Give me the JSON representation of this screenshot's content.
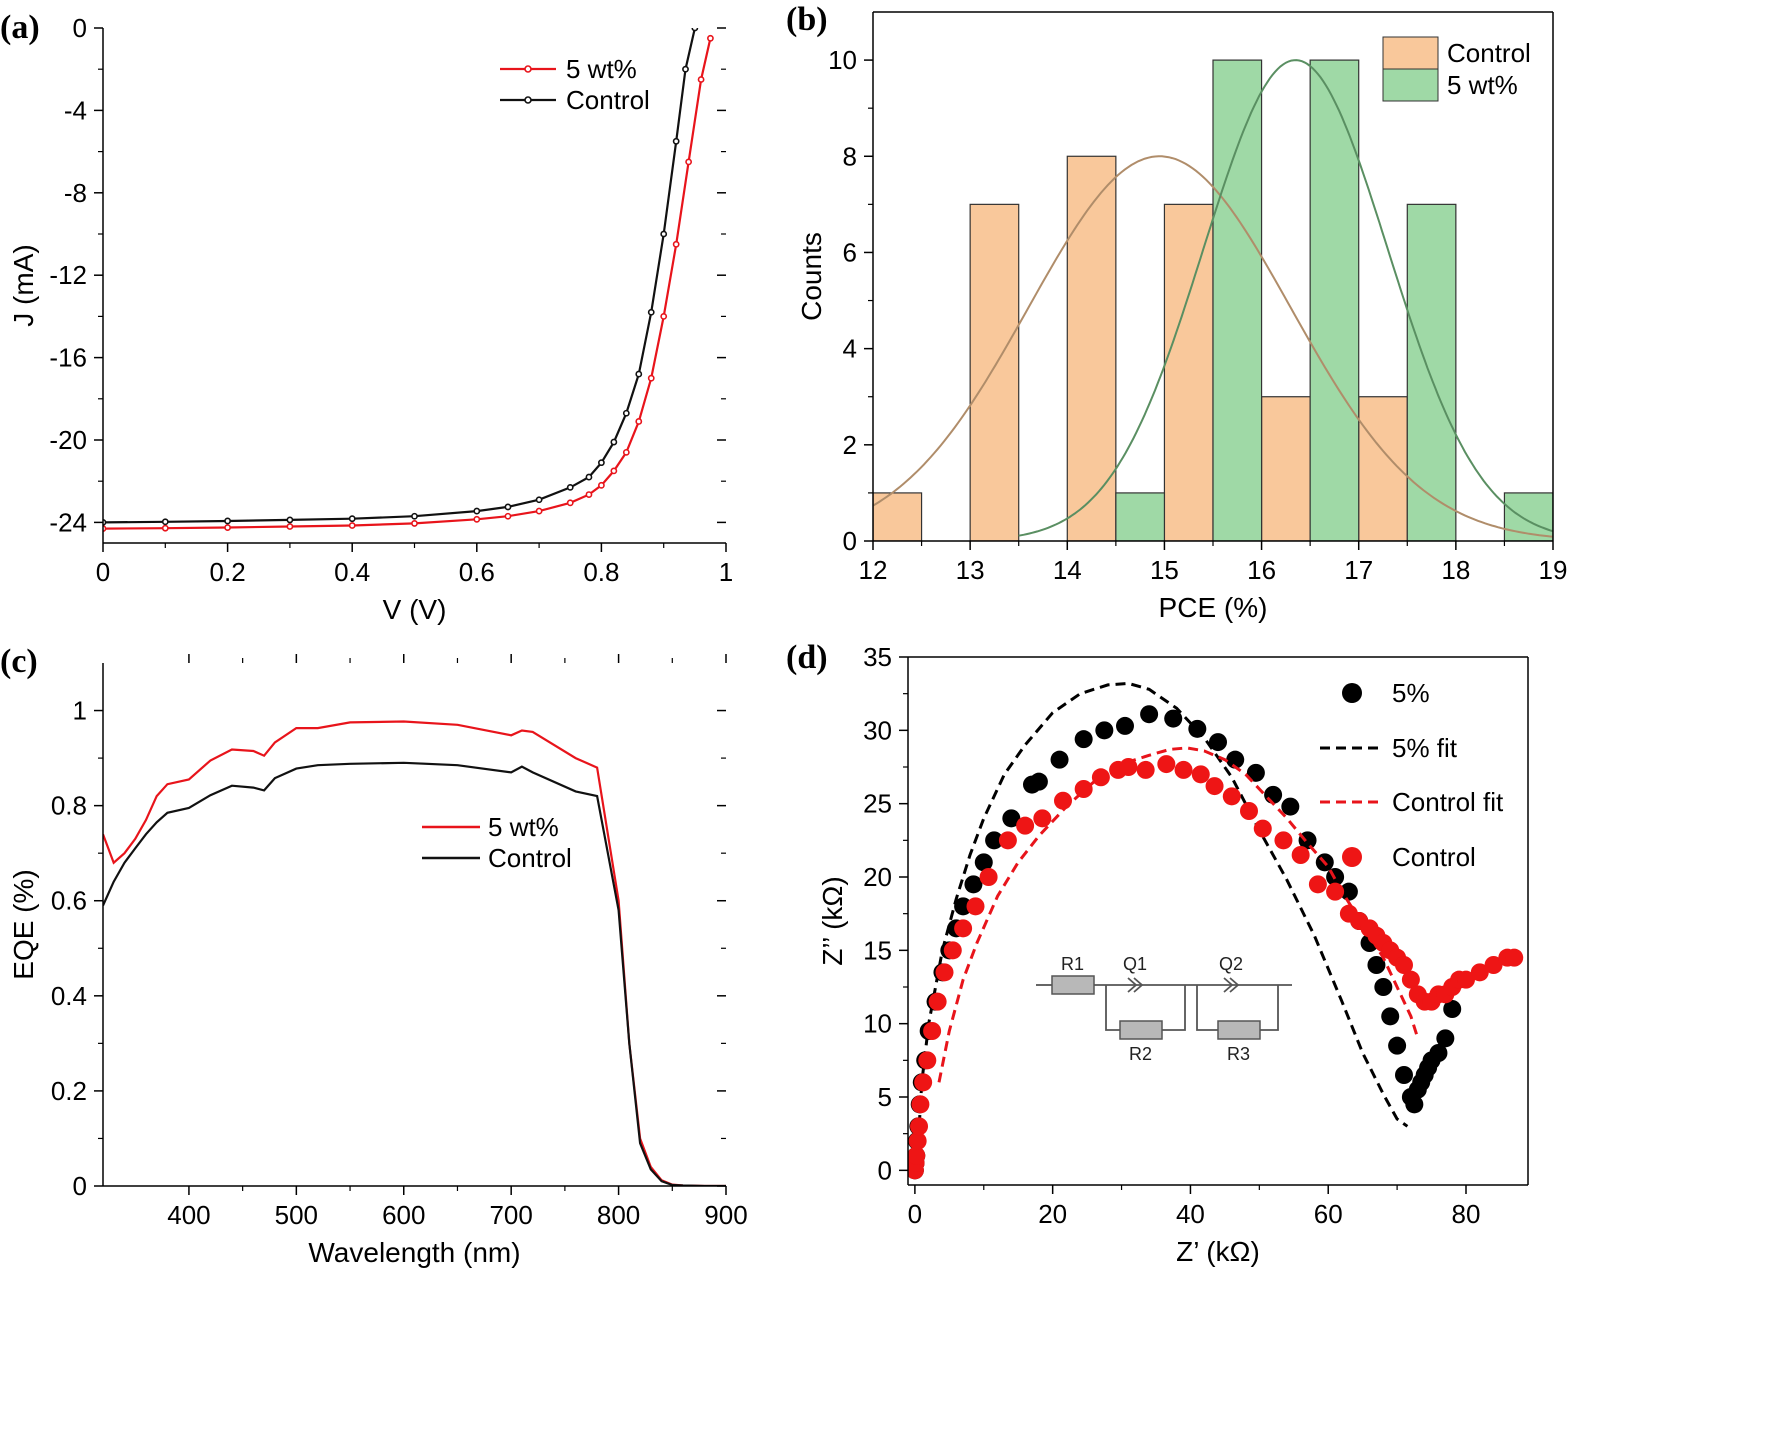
{
  "chart_data": [
    {
      "panel": "(a)",
      "type": "line",
      "xlabel": "V (V)",
      "ylabel": "J (mA)",
      "xlim": [
        0,
        1
      ],
      "ylim": [
        -25,
        0
      ],
      "xticks": [
        0,
        0.2,
        0.4,
        0.6,
        0.8,
        1
      ],
      "xtick_labels": [
        "0",
        "0.2",
        "0.4",
        "0.6",
        "0.8",
        "1"
      ],
      "yticks": [
        -24,
        -20,
        -16,
        -12,
        -8,
        -4,
        0
      ],
      "ytick_labels": [
        "-24",
        "-20",
        "-16",
        "-12",
        "-8",
        "-4",
        "0"
      ],
      "legend": [
        "5 wt%",
        "Control"
      ],
      "series": [
        {
          "name": "5 wt%",
          "color": "#e8141b",
          "x": [
            0,
            0.1,
            0.2,
            0.3,
            0.4,
            0.5,
            0.6,
            0.65,
            0.7,
            0.75,
            0.78,
            0.8,
            0.82,
            0.84,
            0.86,
            0.88,
            0.9,
            0.92,
            0.94,
            0.96,
            0.975
          ],
          "y": [
            -24.3,
            -24.28,
            -24.25,
            -24.2,
            -24.15,
            -24.05,
            -23.85,
            -23.7,
            -23.45,
            -23.05,
            -22.65,
            -22.2,
            -21.5,
            -20.6,
            -19.1,
            -17.0,
            -14.0,
            -10.5,
            -6.5,
            -2.5,
            -0.5
          ]
        },
        {
          "name": "Control",
          "color": "#111111",
          "x": [
            0,
            0.1,
            0.2,
            0.3,
            0.4,
            0.5,
            0.6,
            0.65,
            0.7,
            0.75,
            0.78,
            0.8,
            0.82,
            0.84,
            0.86,
            0.88,
            0.9,
            0.92,
            0.935,
            0.95
          ],
          "y": [
            -24.0,
            -23.97,
            -23.93,
            -23.88,
            -23.82,
            -23.7,
            -23.45,
            -23.25,
            -22.9,
            -22.3,
            -21.8,
            -21.1,
            -20.1,
            -18.7,
            -16.8,
            -13.8,
            -10.0,
            -5.5,
            -2.0,
            0.0
          ]
        }
      ]
    },
    {
      "panel": "(b)",
      "type": "bar",
      "xlabel": "PCE (%)",
      "ylabel": "Counts",
      "xlim": [
        12,
        19
      ],
      "ylim": [
        0,
        11
      ],
      "xticks": [
        12,
        13,
        14,
        15,
        16,
        17,
        18,
        19
      ],
      "xtick_labels": [
        "12",
        "13",
        "14",
        "15",
        "16",
        "17",
        "18",
        "19"
      ],
      "yticks": [
        0,
        2,
        4,
        6,
        8,
        10
      ],
      "ytick_labels": [
        "0",
        "2",
        "4",
        "6",
        "8",
        "10"
      ],
      "legend": [
        "Control",
        "5 wt%"
      ],
      "bin_width": 0.5,
      "series": [
        {
          "name": "Control",
          "color": "#f9c89b",
          "bin_starts": [
            12.0,
            13.0,
            14.0,
            15.0,
            16.0,
            17.0
          ],
          "values": [
            1,
            7,
            8,
            7,
            3,
            3
          ],
          "fit_color": "#b08d6a",
          "fit_mean": 14.95,
          "fit_sigma": 1.35,
          "fit_peak": 8,
          "fit_range": [
            12,
            19
          ]
        },
        {
          "name": "5 wt%",
          "color": "#9fd9a6",
          "bin_starts": [
            14.5,
            15.5,
            16.5,
            17.5,
            18.5
          ],
          "values": [
            1,
            10,
            10,
            7,
            1
          ],
          "fit_color": "#5a8f62",
          "fit_mean": 16.35,
          "fit_sigma": 0.95,
          "fit_peak": 10,
          "fit_range": [
            13.5,
            19
          ]
        }
      ]
    },
    {
      "panel": "(c)",
      "type": "line",
      "xlabel": "Wavelength (nm)",
      "ylabel": "EQE  (%)",
      "xlim": [
        320,
        900
      ],
      "ylim": [
        0,
        1.1
      ],
      "xticks": [
        400,
        500,
        600,
        700,
        800,
        900
      ],
      "xtick_labels": [
        "400",
        "500",
        "600",
        "700",
        "800",
        "900"
      ],
      "yticks": [
        0,
        0.2,
        0.4,
        0.6,
        0.8,
        1
      ],
      "ytick_labels": [
        "0",
        "0.2",
        "0.4",
        "0.6",
        "0.8",
        "1"
      ],
      "legend": [
        "5 wt%",
        "Control"
      ],
      "series": [
        {
          "name": "5 wt%",
          "color": "#e8141b",
          "x": [
            320,
            330,
            340,
            350,
            360,
            370,
            380,
            400,
            420,
            440,
            460,
            470,
            480,
            500,
            520,
            550,
            600,
            650,
            700,
            710,
            720,
            760,
            780,
            800,
            810,
            820,
            830,
            840,
            850,
            860,
            880,
            900
          ],
          "y": [
            0.74,
            0.68,
            0.7,
            0.73,
            0.77,
            0.82,
            0.845,
            0.855,
            0.895,
            0.918,
            0.915,
            0.905,
            0.933,
            0.963,
            0.963,
            0.975,
            0.977,
            0.97,
            0.948,
            0.958,
            0.955,
            0.9,
            0.88,
            0.6,
            0.3,
            0.1,
            0.04,
            0.012,
            0.003,
            0.001,
            0,
            0
          ]
        },
        {
          "name": "Control",
          "color": "#111111",
          "x": [
            320,
            330,
            340,
            350,
            360,
            370,
            380,
            400,
            420,
            440,
            460,
            470,
            480,
            500,
            520,
            550,
            600,
            650,
            700,
            710,
            720,
            760,
            780,
            800,
            810,
            820,
            830,
            840,
            850,
            860,
            880,
            900
          ],
          "y": [
            0.59,
            0.64,
            0.68,
            0.71,
            0.74,
            0.765,
            0.785,
            0.795,
            0.822,
            0.842,
            0.838,
            0.832,
            0.858,
            0.878,
            0.885,
            0.888,
            0.89,
            0.885,
            0.87,
            0.882,
            0.87,
            0.83,
            0.82,
            0.58,
            0.3,
            0.09,
            0.035,
            0.01,
            0.002,
            0.001,
            0,
            0
          ]
        }
      ]
    },
    {
      "panel": "(d)",
      "type": "scatter",
      "xlabel": "Z’ (kΩ)",
      "ylabel": "Z’’ (kΩ)",
      "xlim": [
        -1,
        89
      ],
      "ylim": [
        -1,
        35
      ],
      "xticks": [
        0,
        20,
        40,
        60,
        80
      ],
      "xtick_labels": [
        "0",
        "20",
        "40",
        "60",
        "80"
      ],
      "yticks": [
        0,
        5,
        10,
        15,
        20,
        25,
        30,
        35
      ],
      "ytick_labels": [
        "0",
        "5",
        "10",
        "15",
        "20",
        "25",
        "30",
        "35"
      ],
      "legend": [
        "5%",
        "5% fit",
        "Control fit",
        "Control"
      ],
      "circuit_labels": [
        "R1",
        "Q1",
        "Q2",
        "R2",
        "R3"
      ],
      "series": [
        {
          "name": "5%",
          "color": "#000000",
          "mode": "markers",
          "x": [
            0,
            0.1,
            0.2,
            0.3,
            0.5,
            0.7,
            1.0,
            1.5,
            2,
            3,
            4,
            5,
            6,
            7,
            8.5,
            10,
            11.5,
            14,
            17,
            18,
            21,
            24.5,
            27.5,
            30.5,
            34,
            37.5,
            41,
            44,
            46.5,
            49.5,
            52,
            54.5,
            57,
            59.5,
            61,
            63,
            64.5,
            66,
            67,
            68,
            69,
            70,
            71,
            72,
            72.5,
            73,
            73.5,
            74,
            74.5,
            75,
            76,
            77,
            78
          ],
          "y": [
            0,
            0.5,
            1,
            2,
            3,
            4.5,
            6,
            7.5,
            9.5,
            11.5,
            13.5,
            15,
            16.5,
            18,
            19.5,
            21,
            22.5,
            24,
            26.3,
            26.5,
            28,
            29.4,
            30,
            30.3,
            31.1,
            30.8,
            30.1,
            29.2,
            28,
            27.1,
            25.6,
            24.8,
            22.5,
            21,
            20,
            19,
            17,
            15.5,
            14,
            12.5,
            10.5,
            8.5,
            6.5,
            5,
            4.5,
            5.5,
            6,
            6.5,
            7,
            7.5,
            8,
            9,
            11
          ]
        },
        {
          "name": "5% fit",
          "color": "#000000",
          "mode": "dashed",
          "x": [
            0.5,
            1,
            2,
            4,
            6,
            8,
            10,
            13,
            16,
            20,
            24,
            28,
            31,
            34,
            38,
            42,
            46,
            50,
            54,
            58,
            62,
            65,
            68,
            70,
            71.5
          ],
          "y": [
            2,
            6,
            10,
            15,
            18.5,
            21.5,
            24,
            27,
            29,
            31.2,
            32.5,
            33.1,
            33.2,
            32.8,
            31.5,
            29.5,
            26.8,
            23.2,
            19.8,
            16,
            11.5,
            8,
            5.2,
            3.5,
            3
          ]
        },
        {
          "name": "Control fit",
          "color": "#e8141b",
          "mode": "dashed",
          "x": [
            3.5,
            5,
            7,
            9,
            12,
            15,
            18,
            22,
            26,
            30,
            34,
            37,
            39.5,
            42,
            45,
            48,
            51,
            54,
            57,
            60,
            62,
            64,
            66,
            68,
            70,
            72,
            73
          ],
          "y": [
            6,
            9.5,
            13,
            15.5,
            18.7,
            21,
            22.8,
            24.8,
            26.5,
            27.7,
            28.3,
            28.7,
            28.8,
            28.6,
            28,
            27,
            25.5,
            24,
            22.3,
            20.7,
            19,
            17.5,
            16,
            14.5,
            12.5,
            10.5,
            9
          ]
        },
        {
          "name": "Control",
          "color": "#ee1515",
          "mode": "markers",
          "x": [
            0,
            0.1,
            0.2,
            0.4,
            0.6,
            0.8,
            1.2,
            1.8,
            2.5,
            3.3,
            4.3,
            5.5,
            7,
            8.8,
            10.7,
            13.5,
            16,
            18.5,
            21.5,
            24.5,
            27,
            29.5,
            31,
            33.5,
            36.5,
            39,
            41.5,
            43.5,
            46,
            48.5,
            50.5,
            53.5,
            56,
            58.5,
            61,
            63,
            64.5,
            66,
            67,
            68,
            69,
            70,
            71,
            72,
            73,
            74,
            75,
            76,
            77,
            78,
            79,
            80,
            82,
            84,
            86,
            87
          ],
          "y": [
            0,
            0.5,
            1,
            2,
            3,
            4.5,
            6,
            7.5,
            9.5,
            11.5,
            13.5,
            15,
            16.5,
            18,
            20,
            22.5,
            23.5,
            24,
            25.2,
            26,
            26.8,
            27.3,
            27.5,
            27.3,
            27.7,
            27.3,
            27,
            26.2,
            25.5,
            24.5,
            23.3,
            22.5,
            21.5,
            19.5,
            19,
            17.5,
            17,
            16.5,
            16,
            15.5,
            15,
            14.5,
            14,
            13,
            12,
            11.5,
            11.5,
            12,
            12,
            12.5,
            13,
            13,
            13.5,
            14,
            14.5,
            14.5
          ]
        }
      ]
    }
  ]
}
